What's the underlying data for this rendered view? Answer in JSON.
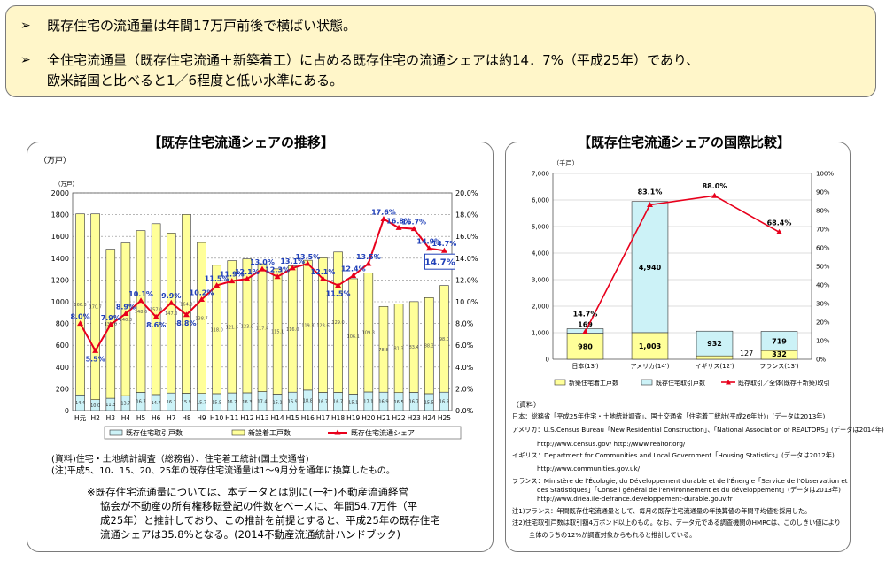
{
  "banner": {
    "bullets": [
      {
        "arrow": "➢",
        "lines": [
          "既存住宅の流通量は年間17万戸前後で横ばい状態。"
        ]
      },
      {
        "arrow": "➢",
        "lines": [
          "全住宅流通量（既存住宅流通＋新築着工）に占める既存住宅の流通シェアは約14．7%（平成25年）であり、",
          "欧米諸国と比べると1／6程度と低い水準にある。"
        ]
      }
    ]
  },
  "left": {
    "title": "【既存住宅流通シェアの推移】",
    "unit_label": "（万戸）",
    "source_lines": [
      "(資料)住宅・土地統計調査（総務省）、住宅着工統計(国土交通省)",
      "(注)平成5、10、15、20、25年の既存住宅流通量は1～9月分を通年に換算したもの。"
    ],
    "remark_lines": [
      "※既存住宅流通量については、本データとは別に(一社)不動産流通経営",
      "協会が不動産の所有権移転登記の件数をベースに、年間54.7万件（平",
      "成25年）と推計しており、この推計を前提とすると、平成25年の既存住宅",
      "流通シェアは35.8%となる。(2014不動産流通統計ハンドブック)"
    ]
  },
  "right": {
    "title": "【既存住宅流通シェアの国際比較】",
    "unit_label": "（千戸）",
    "notes": [
      "（資料）",
      "日本：総務省「平成25年住宅・土地統計調査」、国土交通省「住宅着工統計(平成26年計)」(データは2013年)",
      "アメリカ：U.S.Census Bureau「New Residential Construction」、「National Association of REALTORS」(データは2014年)",
      "http://www.census.gov/ http://www.realtor.org/",
      "イギリス：Department for Communities and Local Government「Housing Statistics」(データは2012年)",
      "http://www.communities.gov.uk/",
      "フランス：Ministère de l'Écologie, du Développement durable et de l'Énergie「Service de l'Observation et",
      "des Statistiques」「Conseil général de l'environnement et du développement」(データは2013年)",
      "http://www.driea.ile-defrance.developpement-durable.gouv.fr",
      "注1)フランス：年間既存住宅流通量として、毎月の既存住宅流通量の年換算値の年間平均値を採用した。",
      "注2)住宅取引戸数は取引額4万ポンド以上のもの。なお、データ元である調査機関のHMRCは、このしきい値により",
      "全体のうちの12%が調査対象からもれると推計している。"
    ]
  },
  "chart_data": [
    {
      "type": "bar",
      "stacked": true,
      "categories": [
        "H元",
        "H2",
        "H3",
        "H4",
        "H5",
        "H6",
        "H7",
        "H8",
        "H9",
        "H10",
        "H11",
        "H12",
        "H13",
        "H14",
        "H15",
        "H16",
        "H17",
        "H18",
        "H19",
        "H20",
        "H21",
        "H22",
        "H23",
        "H24",
        "H25"
      ],
      "series": [
        {
          "name": "既存住宅取引戸数",
          "color": "#ccf2f7",
          "values": [
            14.4,
            10.0,
            11.3,
            13.7,
            16.7,
            14.7,
            16.1,
            15.9,
            15.7,
            15.5,
            16.2,
            16.3,
            17.4,
            15.1,
            16.9,
            18.8,
            16.7,
            16.7,
            15.1,
            17.1,
            16.9,
            16.5,
            16.7,
            15.5,
            16.9
          ]
        },
        {
          "name": "新設着工戸数",
          "color": "#ffff99",
          "values": [
            166.3,
            170.7,
            137.0,
            140.3,
            148.6,
            157.0,
            147.0,
            164.3,
            138.7,
            118.0,
            121.5,
            123.0,
            117.4,
            115.1,
            116.0,
            119.3,
            123.6,
            129.0,
            106.1,
            109.3,
            78.8,
            81.3,
            83.4,
            88.3,
            98.0
          ]
        },
        {
          "name": "既存住宅流通シェア",
          "type": "line",
          "color": "#e8001c",
          "axis": "right",
          "values": [
            8.0,
            5.5,
            7.9,
            8.9,
            10.1,
            8.6,
            9.9,
            8.8,
            10.2,
            11.5,
            11.9,
            12.1,
            13.0,
            12.3,
            13.1,
            13.5,
            12.1,
            11.5,
            12.4,
            13.5,
            17.6,
            16.8,
            16.7,
            14.9,
            14.7
          ]
        }
      ],
      "y_left": {
        "label": "（万戸）",
        "range": [
          0,
          2000
        ],
        "ticks": [
          "0",
          "200",
          "400",
          "600",
          "800",
          "1000",
          "1200",
          "1400",
          "1600",
          "1800",
          "2000"
        ]
      },
      "y_right": {
        "range": [
          0,
          20
        ],
        "ticks": [
          "0.0%",
          "2.0%",
          "4.0%",
          "6.0%",
          "8.0%",
          "10.0%",
          "12.0%",
          "14.0%",
          "16.0%",
          "18.0%",
          "20.0%"
        ]
      },
      "line_labels": [
        "8.0%",
        "5.5%",
        "7.9%",
        "8.9%",
        "10.1%",
        "8.6%",
        "9.9%",
        "8.8%",
        "10.2%",
        "11.5%",
        "11.9%",
        "12.1%",
        "13.0%",
        "12.3%",
        "13.1%",
        "13.5%",
        "12.1%",
        "11.5%",
        "12.4%",
        "13.5%",
        "17.6%",
        "16.8%",
        "16.7%",
        "14.9%",
        "14.7%"
      ],
      "highlight_label": "14.7%",
      "legend": [
        "既存住宅取引戸数",
        "新設着工戸数",
        "既存住宅流通シェア"
      ],
      "legend_position": "bottom"
    },
    {
      "type": "bar",
      "stacked": true,
      "categories": [
        "日本(13')",
        "アメリカ(14')",
        "イギリス(12')",
        "フランス(13')"
      ],
      "series": [
        {
          "name": "新築住宅着工戸数",
          "color": "#ffff99",
          "values": [
            980,
            1003,
            127,
            332
          ]
        },
        {
          "name": "既存住宅取引戸数",
          "color": "#ccf2f7",
          "values": [
            169,
            4940,
            932,
            719
          ]
        },
        {
          "name": "既存取引／全体(既存＋新築)取引",
          "type": "line",
          "color": "#e8001c",
          "axis": "right",
          "values": [
            14.7,
            83.1,
            88.0,
            68.4
          ]
        }
      ],
      "top_labels": [
        "14.7%",
        "83.1%",
        "88.0%",
        "68.4%"
      ],
      "y_left": {
        "label": "（千戸）",
        "range": [
          0,
          7000
        ],
        "ticks": [
          "0",
          "1,000",
          "2,000",
          "3,000",
          "4,000",
          "5,000",
          "6,000",
          "7,000"
        ]
      },
      "y_right": {
        "range": [
          0,
          100
        ],
        "ticks": [
          "0%",
          "10%",
          "20%",
          "30%",
          "40%",
          "50%",
          "60%",
          "70%",
          "80%",
          "90%",
          "100%"
        ]
      },
      "bar_value_labels": {
        "new": [
          "980",
          "1,003",
          "127",
          "332"
        ],
        "existing": [
          "169",
          "4,940",
          "932",
          "719"
        ]
      },
      "legend": [
        "新築住宅着工戸数",
        "既存住宅取引戸数",
        "既存取引／全体(既存＋新築)取引"
      ],
      "legend_position": "bottom"
    }
  ]
}
